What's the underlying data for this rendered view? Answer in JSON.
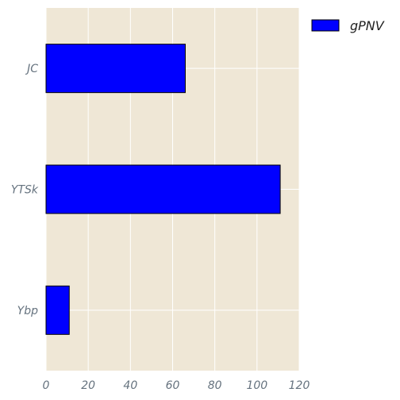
{
  "chart_data": {
    "type": "bar",
    "orientation": "horizontal",
    "categories": [
      "JC",
      "YTSk",
      "Ybp"
    ],
    "series": [
      {
        "name": "gPNV",
        "values": [
          66,
          111,
          11
        ],
        "color": "#0000ff"
      }
    ],
    "xlim": [
      0,
      120
    ],
    "x_ticks": [
      0,
      20,
      40,
      60,
      80,
      100,
      120
    ],
    "x_tick_labels": [
      "0",
      "20",
      "40",
      "60",
      "80",
      "100",
      "120"
    ],
    "title": "",
    "xlabel": "",
    "ylabel": "",
    "grid": true,
    "legend_position": "top-right outside",
    "colors": {
      "plot_background": "#efe7d6",
      "grid": "#ffffff",
      "bar_edge": "#000000",
      "tick_text": "#66737f"
    }
  }
}
